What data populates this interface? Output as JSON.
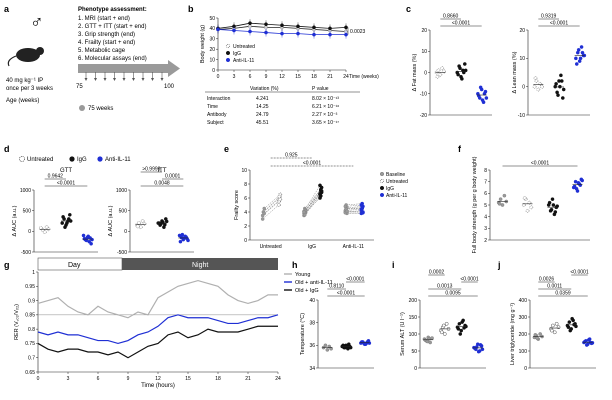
{
  "colors": {
    "untreated": "#ffffff",
    "igg": "#111111",
    "anti": "#1f2fd4",
    "baseline": "#9a9a9a",
    "young": "#b0b0b0",
    "arrow": "#9a9a9a"
  },
  "panel_a": {
    "label": "a",
    "sex_symbol": "♂",
    "dose_text": "40 mg kg⁻¹ IP",
    "schedule_text": "once per 3 weeks",
    "age_text": "Age (weeks)",
    "start_age": "75",
    "end_age": "100",
    "legend_text": "75 weeks",
    "assessment_title": "Phenotype assessment:",
    "assessments": [
      "1. MRI (start + end)",
      "2. GTT + ITT (start + end)",
      "3. Grip strength (end)",
      "4. Frailty (start + end)",
      "5. Metabolic cage",
      "6. Molecular assays (end)"
    ]
  },
  "panel_b": {
    "label": "b",
    "table_headers": [
      "Variation (%)",
      "P value"
    ],
    "table_rows": [
      {
        "name": "Interaction",
        "variation": "4.241",
        "p": "8.02 × 10⁻¹³"
      },
      {
        "name": "Time",
        "variation": "14.25",
        "p": "6.21 × 10⁻¹⁶"
      },
      {
        "name": "Antibody",
        "variation": "24.79",
        "p": "2.27 × 10⁻³"
      },
      {
        "name": "Subject",
        "variation": "45.51",
        "p": "3.65 × 10⁻¹⁷"
      }
    ]
  },
  "panel_c": {
    "label": "c"
  },
  "panel_d": {
    "label": "d",
    "legend": [
      "Untreated",
      "IgG",
      "Anti-IL-11"
    ]
  },
  "panel_e": {
    "label": "e"
  },
  "panel_f": {
    "label": "f"
  },
  "panel_g": {
    "label": "g",
    "day_label": "Day",
    "night_label": "Night"
  },
  "panel_h": {
    "label": "h"
  },
  "panel_i": {
    "label": "i"
  },
  "panel_j": {
    "label": "j"
  },
  "chart_data": [
    {
      "id": "b",
      "type": "line",
      "x": [
        0,
        3,
        6,
        9,
        12,
        15,
        18,
        21,
        24
      ],
      "xlabel": "Time (weeks)",
      "ylabel": "Body weight (g)",
      "ylim": [
        0,
        50
      ],
      "yticks": [
        0,
        10,
        20,
        30,
        40,
        50
      ],
      "series": [
        {
          "name": "Untreated",
          "values": [
            39,
            40,
            42,
            41,
            41,
            40,
            39,
            38,
            37
          ],
          "color": "#ffffff"
        },
        {
          "name": "IgG",
          "values": [
            40,
            42,
            45,
            44,
            43,
            42,
            41,
            40,
            41
          ],
          "color": "#111111"
        },
        {
          "name": "Anti-IL-11",
          "values": [
            39,
            38,
            37,
            36,
            35,
            35,
            34,
            34,
            34
          ],
          "color": "#1f2fd4"
        }
      ],
      "annotation": "0.0023"
    },
    {
      "id": "c1",
      "type": "scatter",
      "ylabel": "Δ Fat mass (%)",
      "ylim": [
        -20,
        20
      ],
      "yticks": [
        -20,
        -10,
        0,
        10,
        20
      ],
      "groups": [
        {
          "name": "Untreated",
          "values": [
            0,
            1,
            -1,
            2,
            0.5,
            -2
          ]
        },
        {
          "name": "IgG",
          "values": [
            0,
            3,
            -2,
            1,
            4,
            -1,
            2,
            -3,
            0,
            1
          ]
        },
        {
          "name": "Anti-IL-11",
          "values": [
            -10,
            -12,
            -8,
            -14,
            -9,
            -11,
            -7,
            -13,
            -10,
            -12
          ]
        }
      ],
      "comparisons": [
        {
          "label": "<0.0001"
        },
        {
          "label": "0.8660"
        }
      ]
    },
    {
      "id": "c2",
      "type": "scatter",
      "ylabel": "Δ Lean mass (%)",
      "ylim": [
        -10,
        20
      ],
      "yticks": [
        -10,
        0,
        10,
        20
      ],
      "groups": [
        {
          "name": "Untreated",
          "values": [
            0,
            2,
            -1,
            1,
            0,
            3
          ]
        },
        {
          "name": "IgG",
          "values": [
            0,
            -2,
            2,
            4,
            -4,
            1,
            -3,
            0,
            2,
            -1
          ]
        },
        {
          "name": "Anti-IL-11",
          "values": [
            10,
            12,
            9,
            14,
            11,
            8,
            13,
            10,
            12,
            11
          ]
        }
      ],
      "comparisons": [
        {
          "label": "<0.0001"
        },
        {
          "label": "0.9319"
        }
      ]
    },
    {
      "id": "d1",
      "type": "scatter",
      "title": "GTT",
      "ylabel": "Δ AUC (a.u.)",
      "ylim": [
        -500,
        1000
      ],
      "yticks": [
        -500,
        0,
        500,
        1000
      ],
      "groups": [
        {
          "name": "Untreated",
          "values": [
            80,
            30,
            -20,
            100,
            50
          ]
        },
        {
          "name": "IgG",
          "values": [
            200,
            300,
            150,
            250,
            400,
            350,
            100,
            200,
            300,
            250
          ]
        },
        {
          "name": "Anti-IL-11",
          "values": [
            -100,
            -200,
            -150,
            -250,
            -300,
            -180,
            -220,
            -120,
            -160,
            -200
          ]
        }
      ],
      "comparisons": [
        {
          "label": "<0.0001"
        },
        {
          "label": "0.9642"
        }
      ]
    },
    {
      "id": "d2",
      "type": "scatter",
      "title": "ITT",
      "ylabel": "Δ AUC (a.u.)",
      "ylim": [
        -500,
        1000
      ],
      "yticks": [
        -500,
        0,
        500,
        1000
      ],
      "groups": [
        {
          "name": "Untreated",
          "values": [
            150,
            200,
            100,
            250,
            180,
            120
          ]
        },
        {
          "name": "IgG",
          "values": [
            200,
            150,
            250,
            100,
            300,
            200,
            180,
            220,
            160,
            240
          ]
        },
        {
          "name": "Anti-IL-11",
          "values": [
            -100,
            -150,
            -200,
            -120,
            -180,
            -250,
            -80,
            -160,
            -140,
            -220
          ]
        }
      ],
      "comparisons": [
        {
          "label": "0.0048"
        },
        {
          "label": "0.0001"
        },
        {
          "label": ">0.9999"
        }
      ]
    },
    {
      "id": "e",
      "type": "scatter",
      "ylabel": "Frailty score",
      "ylim": [
        0,
        10
      ],
      "yticks": [
        0,
        2,
        4,
        6,
        8,
        10
      ],
      "categories": [
        "Untreated",
        "IgG",
        "Anti-IL-11"
      ],
      "series": [
        {
          "name": "Baseline",
          "groups": [
            [
              3.5,
              4.0,
              4.5,
              3.0,
              4.0,
              3.8
            ],
            [
              3.5,
              4.0,
              4.2,
              3.8,
              4.5,
              3.9,
              4.1,
              3.6,
              4.3,
              4.0
            ],
            [
              4.0,
              4.5,
              3.8,
              4.2,
              5.0,
              4.6,
              3.9,
              4.4,
              4.1,
              4.8
            ]
          ],
          "color": "#9a9a9a"
        },
        {
          "name": "Untreated",
          "groups": [
            [
              5.5,
              6.0,
              6.5,
              5.0,
              6.2,
              5.8
            ]
          ],
          "color": "#ffffff"
        },
        {
          "name": "IgG",
          "groups": [
            [
              6.5,
              7.0,
              7.5,
              6.0,
              7.2,
              6.8,
              7.8,
              6.3,
              7.0,
              6.6
            ]
          ],
          "color": "#111111"
        },
        {
          "name": "Anti-IL-11",
          "groups": [
            [
              4.2,
              4.6,
              3.9,
              4.4,
              5.2,
              4.8,
              3.8,
              4.5,
              4.0,
              5.0
            ]
          ],
          "color": "#1f2fd4"
        }
      ],
      "comparisons": [
        {
          "label": "<0.0001"
        },
        {
          "label": "0.925"
        }
      ]
    },
    {
      "id": "f",
      "type": "scatter",
      "ylabel": "Full body strength (g per g body weight)",
      "ylim": [
        2,
        8
      ],
      "yticks": [
        2,
        3,
        4,
        5,
        6,
        7,
        8
      ],
      "groups": [
        {
          "name": "Baseline",
          "values": [
            5.2,
            5.5,
            5.0,
            5.8,
            5.3,
            5.1
          ]
        },
        {
          "name": "Untreated",
          "values": [
            5.0,
            5.5,
            4.5,
            5.2,
            4.8,
            5.6
          ]
        },
        {
          "name": "IgG",
          "values": [
            5.0,
            4.5,
            5.5,
            4.2,
            4.8,
            5.2,
            4.6,
            5.0,
            4.4,
            4.9
          ]
        },
        {
          "name": "Anti-IL-11",
          "values": [
            6.5,
            7.0,
            6.2,
            6.8,
            7.2,
            6.6,
            6.4,
            6.9,
            6.7,
            7.1
          ]
        }
      ],
      "comparisons": [
        {
          "label": "<0.0001"
        }
      ]
    },
    {
      "id": "g",
      "type": "line",
      "xlabel": "Time (hours)",
      "ylabel": "RER (V꜀ₒ₂/Vₒ₂)",
      "ylim": [
        0.65,
        1.0
      ],
      "yticks": [
        0.65,
        0.7,
        0.75,
        0.8,
        0.85,
        0.9,
        0.95,
        1.0
      ],
      "xlim": [
        0,
        24
      ],
      "xticks": [
        0,
        3,
        6,
        9,
        12,
        15,
        18,
        21,
        24
      ],
      "series": [
        {
          "name": "Young",
          "values": [
            0.89,
            0.9,
            0.91,
            0.88,
            0.86,
            0.85,
            0.88,
            0.86,
            0.85,
            0.84,
            0.86,
            0.85,
            0.91,
            0.93,
            0.95,
            0.96,
            0.97,
            0.96,
            0.95,
            0.92,
            0.9,
            0.89,
            0.9,
            0.92,
            0.92
          ],
          "color": "#b0b0b0"
        },
        {
          "name": "Old + anti-IL-11",
          "values": [
            0.79,
            0.78,
            0.79,
            0.78,
            0.78,
            0.77,
            0.76,
            0.76,
            0.75,
            0.76,
            0.78,
            0.79,
            0.81,
            0.84,
            0.85,
            0.84,
            0.84,
            0.84,
            0.83,
            0.82,
            0.82,
            0.83,
            0.84,
            0.84,
            0.85
          ],
          "color": "#1f2fd4"
        },
        {
          "name": "Old + IgG",
          "values": [
            0.75,
            0.73,
            0.72,
            0.73,
            0.73,
            0.72,
            0.72,
            0.71,
            0.72,
            0.7,
            0.72,
            0.74,
            0.75,
            0.78,
            0.79,
            0.77,
            0.78,
            0.8,
            0.79,
            0.79,
            0.79,
            0.8,
            0.81,
            0.81,
            0.81
          ],
          "color": "#111111"
        }
      ],
      "reference_line": 0.85
    },
    {
      "id": "h",
      "type": "scatter",
      "ylabel": "Temperature (°C)",
      "ylim": [
        34,
        40
      ],
      "yticks": [
        34,
        36,
        38,
        40
      ],
      "groups": [
        {
          "name": "Young",
          "values": [
            35.8,
            36.0,
            35.6,
            35.9,
            35.7
          ]
        },
        {
          "name": "Old + IgG",
          "values": [
            35.9,
            35.8,
            36.0,
            35.7,
            35.9,
            36.0,
            35.8,
            35.9,
            36.1,
            35.8
          ]
        },
        {
          "name": "Old + anti-IL-11",
          "values": [
            36.2,
            36.3,
            36.1,
            36.2,
            36.4,
            36.3,
            36.2,
            36.1,
            36.3,
            36.2
          ]
        }
      ],
      "comparisons": [
        {
          "label": "<0.0001"
        },
        {
          "label": "0.8110"
        },
        {
          "label": "<0.0001"
        }
      ]
    },
    {
      "id": "i",
      "type": "scatter",
      "ylabel": "Serum ALT (U l⁻¹)",
      "ylim": [
        0,
        200
      ],
      "yticks": [
        0,
        50,
        100,
        150,
        200
      ],
      "groups": [
        {
          "name": "Young",
          "values": [
            85,
            80,
            90,
            75,
            88,
            82,
            78,
            86
          ]
        },
        {
          "name": "Old",
          "values": [
            110,
            120,
            100,
            130,
            115,
            105,
            125
          ]
        },
        {
          "name": "Old + IgG",
          "values": [
            120,
            130,
            110,
            140,
            125,
            115,
            100,
            135,
            118,
            122
          ]
        },
        {
          "name": "Old + anti-IL-11",
          "values": [
            60,
            55,
            70,
            50,
            65,
            58,
            62,
            48,
            68,
            55
          ]
        }
      ],
      "comparisons": [
        {
          "label": "0.0095"
        },
        {
          "label": "0.0013"
        },
        {
          "label": "<0.0001"
        },
        {
          "label": "0.0002"
        }
      ]
    },
    {
      "id": "j",
      "type": "scatter",
      "ylabel": "Liver triglyceride (mg g⁻¹)",
      "ylim": [
        0,
        400
      ],
      "yticks": [
        0,
        100,
        200,
        300,
        400
      ],
      "groups": [
        {
          "name": "Young",
          "values": [
            180,
            190,
            170,
            200,
            185,
            195,
            175
          ]
        },
        {
          "name": "Old",
          "values": [
            230,
            250,
            210,
            260,
            240,
            220
          ]
        },
        {
          "name": "Old + IgG",
          "values": [
            250,
            270,
            230,
            280,
            260,
            240,
            220,
            290,
            255,
            245
          ]
        },
        {
          "name": "Old + anti-IL-11",
          "values": [
            150,
            160,
            140,
            170,
            145,
            155,
            135,
            165,
            150,
            148
          ]
        }
      ],
      "comparisons": [
        {
          "label": "0.0359"
        },
        {
          "label": "0.0011"
        },
        {
          "label": "0.0026"
        },
        {
          "label": "<0.0001"
        }
      ]
    }
  ]
}
